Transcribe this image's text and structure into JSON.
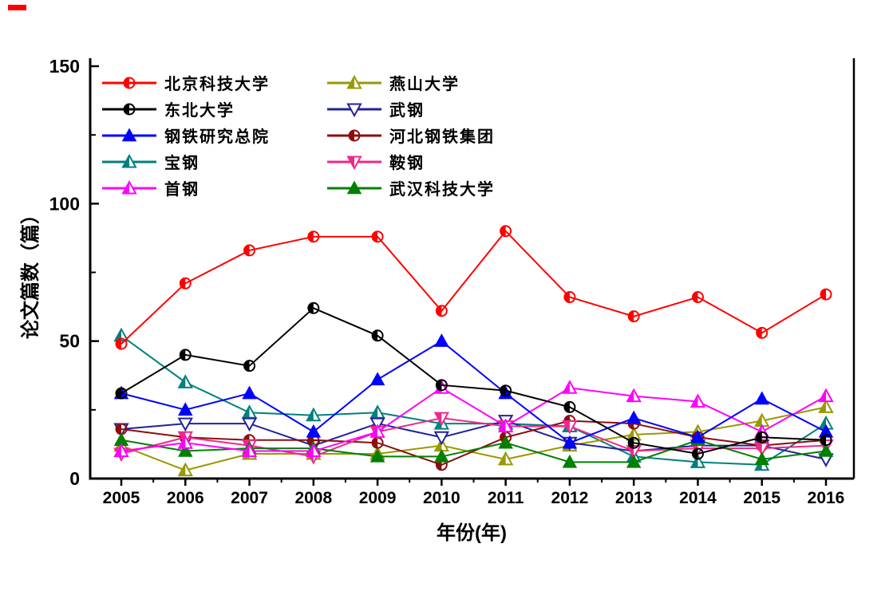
{
  "page": {
    "background": "#ffffff",
    "stray_mark_color": "#ff0000"
  },
  "chart_data": {
    "type": "line",
    "title": "",
    "xlabel": "年份(年)",
    "ylabel": "论文篇数（篇）",
    "x": [
      2005,
      2006,
      2007,
      2008,
      2009,
      2010,
      2011,
      2012,
      2013,
      2014,
      2015,
      2016
    ],
    "ylim": [
      0,
      150
    ],
    "yticks_major": [
      0,
      50,
      100,
      150
    ],
    "yticks_minor": [
      25,
      75,
      125
    ],
    "grid": false,
    "legend_position": "top-left inside plot, two columns",
    "series": [
      {
        "id": "ustb",
        "name": "北京科技大学",
        "color": "#FF0000",
        "marker": "circle-half",
        "values": [
          49,
          71,
          83,
          88,
          88,
          61,
          90,
          66,
          59,
          66,
          53,
          67
        ]
      },
      {
        "id": "neu",
        "name": "东北大学",
        "color": "#000000",
        "marker": "circle-half",
        "values": [
          31,
          45,
          41,
          62,
          52,
          34,
          32,
          26,
          13,
          9,
          15,
          14
        ]
      },
      {
        "id": "cisri",
        "name": "钢铁研究总院",
        "color": "#0000FF",
        "marker": "triangle-up-filled",
        "values": [
          31,
          25,
          31,
          17,
          36,
          50,
          31,
          13,
          22,
          15,
          29,
          17
        ]
      },
      {
        "id": "baosteel",
        "name": "宝钢",
        "color": "#00807E",
        "marker": "triangle-up-half",
        "values": [
          52,
          35,
          24,
          23,
          24,
          20,
          20,
          19,
          8,
          6,
          5,
          20
        ]
      },
      {
        "id": "shougang",
        "name": "首钢",
        "color": "#FF00FF",
        "marker": "triangle-up-half",
        "values": [
          10,
          13,
          10,
          10,
          17,
          33,
          19,
          33,
          30,
          28,
          17,
          30
        ]
      },
      {
        "id": "yanshan",
        "name": "燕山大学",
        "color": "#999900",
        "marker": "triangle-up-half",
        "values": [
          12,
          3,
          9,
          9,
          9,
          12,
          7,
          12,
          16,
          17,
          21,
          26
        ]
      },
      {
        "id": "wisco",
        "name": "武钢",
        "color": "#22229B",
        "marker": "triangle-down-open",
        "values": [
          18,
          20,
          20,
          12,
          20,
          15,
          21,
          13,
          10,
          12,
          12,
          7
        ]
      },
      {
        "id": "hbis",
        "name": "河北钢铁集团",
        "color": "#8B0E0E",
        "marker": "circle-half",
        "values": [
          18,
          15,
          14,
          14,
          13,
          5,
          15,
          21,
          20,
          15,
          12,
          14
        ]
      },
      {
        "id": "ansteel",
        "name": "鞍钢",
        "color": "#F0288C",
        "marker": "triangle-down-half",
        "values": [
          9,
          15,
          12,
          8,
          17,
          22,
          19,
          19,
          10,
          11,
          11,
          12
        ]
      },
      {
        "id": "wust",
        "name": "武汉科技大学",
        "color": "#008000",
        "marker": "triangle-up-filled",
        "values": [
          14,
          10,
          11,
          11,
          8,
          8,
          13,
          6,
          6,
          14,
          7,
          10
        ]
      }
    ],
    "legend_columns": [
      [
        "ustb",
        "neu",
        "cisri",
        "baosteel",
        "shougang"
      ],
      [
        "yanshan",
        "wisco",
        "hbis",
        "ansteel",
        "wust"
      ]
    ]
  }
}
